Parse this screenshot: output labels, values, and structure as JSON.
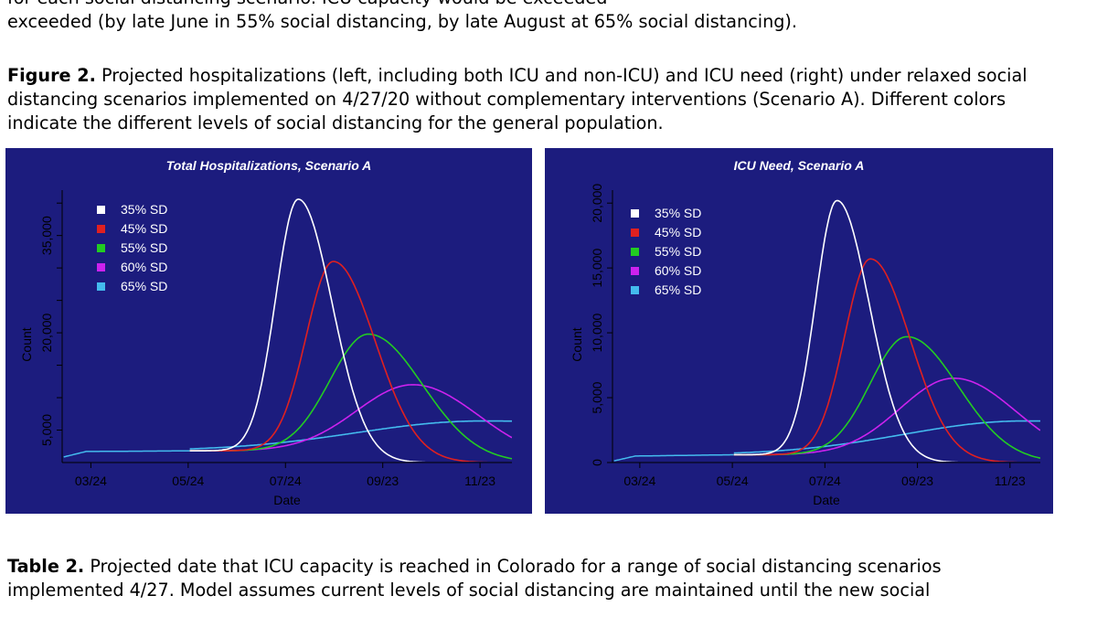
{
  "body_text": {
    "line1": "for each social distancing scenario. ICU capacity would be exceeded",
    "line2": "exceeded (by late June in 55% social distancing, by late August at 65% social distancing)."
  },
  "figure_caption": {
    "label": "Figure 2.",
    "line1": " Projected hospitalizations (left, including both ICU and non-ICU) and ICU need (right) under relaxed social",
    "line2": "distancing scenarios implemented on 4/27/20 without complementary interventions (Scenario A). Different colors",
    "line3": "indicate the different levels of social distancing for the general population."
  },
  "table_caption": {
    "label": "Table 2.",
    "line1": " Projected date that ICU capacity is reached in Colorado for a range of social distancing scenarios",
    "line2": "implemented 4/27. Model assumes current levels of social distancing are maintained until the new social"
  },
  "chart_data": [
    {
      "type": "line",
      "title": "Total Hospitalizations, Scenario A",
      "xlabel": "Date",
      "ylabel": "Count",
      "x_ticks": [
        "03/24",
        "05/24",
        "07/24",
        "09/23",
        "11/23"
      ],
      "x_tick_days": [
        83,
        144,
        205,
        266,
        327
      ],
      "xlim": [
        65,
        347
      ],
      "ylim": [
        0,
        42000
      ],
      "y_tick_values": [
        5000,
        10000,
        15000,
        20000,
        25000,
        30000,
        35000,
        40000
      ],
      "y_tick_labels": [
        "5,000",
        "",
        "",
        "20,000",
        "",
        "",
        "35,000",
        ""
      ],
      "legend": [
        "35% SD",
        "45% SD",
        "55% SD",
        "60% SD",
        "65% SD"
      ],
      "colors": [
        "#ffffff",
        "#e02020",
        "#22cc22",
        "#cc22ee",
        "#44bbee"
      ],
      "baseline": {
        "x": [
          65,
          80,
          145
        ],
        "y": [
          800,
          1700,
          1800
        ]
      },
      "series": [
        {
          "name": "35% SD",
          "start": 145,
          "peak_day": 213,
          "peak": 40600,
          "rise_width": 20,
          "fall_width": 30
        },
        {
          "name": "45% SD",
          "start": 145,
          "peak_day": 235,
          "peak": 31000,
          "rise_width": 24,
          "fall_width": 37
        },
        {
          "name": "55% SD",
          "start": 145,
          "peak_day": 257,
          "peak": 19800,
          "rise_width": 34,
          "fall_width": 48
        },
        {
          "name": "60% SD",
          "start": 145,
          "peak_day": 285,
          "peak": 12000,
          "rise_width": 50,
          "fall_width": 58
        },
        {
          "name": "65% SD",
          "start": 145,
          "peak_day": 327,
          "peak": 6400,
          "rise_width": 110,
          "fall_width": 400
        }
      ]
    },
    {
      "type": "line",
      "title": "ICU Need, Scenario A",
      "xlabel": "Date",
      "ylabel": "Count",
      "x_ticks": [
        "03/24",
        "05/24",
        "07/24",
        "09/23",
        "11/23"
      ],
      "x_tick_days": [
        83,
        144,
        205,
        266,
        327
      ],
      "xlim": [
        65,
        347
      ],
      "ylim": [
        0,
        21000
      ],
      "y_tick_values": [
        0,
        5000,
        10000,
        15000,
        20000
      ],
      "y_tick_labels": [
        "0",
        "5,000",
        "10,000",
        "15,000",
        "20,000"
      ],
      "legend": [
        "35% SD",
        "45% SD",
        "55% SD",
        "60% SD",
        "65% SD"
      ],
      "colors": [
        "#ffffff",
        "#e02020",
        "#22cc22",
        "#cc22ee",
        "#44bbee"
      ],
      "baseline": {
        "x": [
          65,
          80,
          145
        ],
        "y": [
          100,
          500,
          600
        ]
      },
      "series": [
        {
          "name": "35% SD",
          "start": 145,
          "peak_day": 213,
          "peak": 20200,
          "rise_width": 20,
          "fall_width": 30
        },
        {
          "name": "45% SD",
          "start": 145,
          "peak_day": 235,
          "peak": 15700,
          "rise_width": 24,
          "fall_width": 37
        },
        {
          "name": "55% SD",
          "start": 145,
          "peak_day": 259,
          "peak": 9700,
          "rise_width": 34,
          "fall_width": 48
        },
        {
          "name": "60% SD",
          "start": 145,
          "peak_day": 290,
          "peak": 6500,
          "rise_width": 50,
          "fall_width": 58
        },
        {
          "name": "65% SD",
          "start": 145,
          "peak_day": 335,
          "peak": 3200,
          "rise_width": 110,
          "fall_width": 400
        }
      ]
    }
  ]
}
